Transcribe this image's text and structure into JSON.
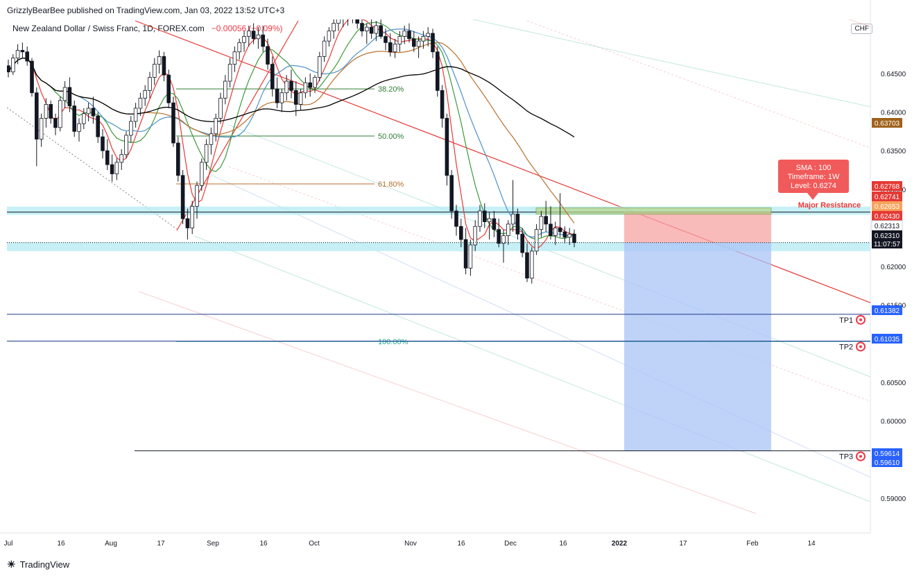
{
  "header": {
    "published_by": "GrizzlyBearBee published on TradingView.com, Jan 03, 2022 13:52 UTC+3"
  },
  "symbol": {
    "title": "New Zealand Dollar / Swiss Franc, 1D, FOREX.com",
    "change": "−0.00056 (−0.09%)"
  },
  "currency": "CHF",
  "footer": {
    "brand": "TradingView"
  },
  "colors": {
    "up": "#ffffff",
    "down": "#131722",
    "sma_red": "#e53935",
    "sma_orange": "#b8702b",
    "sma_green": "#3a9a3a",
    "sma_blue": "#4a90c8",
    "sma_black": "#000000",
    "zone": "#b8ecf4",
    "long_short_red": "#f7a3a3",
    "long_short_blue": "#a9c4f7"
  },
  "chart_data": {
    "type": "candlestick",
    "instrument": "NZDCHF",
    "timeframe": "1D",
    "x_ticks": [
      "Jul",
      "16",
      "Aug",
      "17",
      "Sep",
      "16",
      "Oct",
      "Nov",
      "16",
      "Dec",
      "16",
      "2022",
      "17",
      "Feb",
      "14"
    ],
    "y_ticks": [
      "0.64500",
      "0.64000",
      "0.63500",
      "0.63000",
      "0.62000",
      "0.61500",
      "0.60500",
      "0.60000",
      "0.59000"
    ],
    "ylim": [
      0.5855,
      0.652
    ],
    "price_labels": [
      {
        "value": "0.63703",
        "color": "#a0621c"
      },
      {
        "value": "0.62768",
        "color": "#e53935"
      },
      {
        "value": "0.62741",
        "color": "#e53935"
      },
      {
        "value": "0.62653",
        "color": "#f7a35c"
      },
      {
        "value": "0.62430",
        "color": "#e53935"
      },
      {
        "value": "0.62313",
        "color": "#ffffff"
      },
      {
        "value": "0.62310",
        "color": "#131722"
      },
      {
        "value": "11:07:57",
        "color": "#131722"
      },
      {
        "value": "0.61382",
        "color": "#2962ff"
      },
      {
        "value": "0.61035",
        "color": "#2962ff"
      },
      {
        "value": "0.59614",
        "color": "#2962ff"
      },
      {
        "value": "0.59610",
        "color": "#2962ff"
      }
    ],
    "fib_levels": [
      {
        "label": "38.20%",
        "value": 0.643
      },
      {
        "label": "50.00%",
        "value": 0.6369
      },
      {
        "label": "61.80%",
        "value": 0.6307
      },
      {
        "label": "100.00%",
        "value": 0.6103
      }
    ],
    "targets": [
      {
        "label": "TP1",
        "value": 0.61382
      },
      {
        "label": "TP2",
        "value": 0.61035
      },
      {
        "label": "TP3",
        "value": 0.59614
      }
    ],
    "annotation": {
      "lines": [
        "SMA : 100",
        "Timeframe: 1W",
        "Level: 0.6274"
      ],
      "label": "Major Resistance"
    },
    "resistance_zone": [
      0.62741,
      0.62768
    ],
    "support_zone": [
      0.622,
      0.62313
    ],
    "position": {
      "type": "short",
      "entry": 0.6231,
      "stop": 0.62741,
      "target": 0.59614
    },
    "candles": [
      [
        0.646,
        0.6468,
        0.6445,
        0.6452
      ],
      [
        0.6452,
        0.6475,
        0.6448,
        0.647
      ],
      [
        0.647,
        0.6488,
        0.6462,
        0.648
      ],
      [
        0.648,
        0.649,
        0.647,
        0.6478
      ],
      [
        0.6478,
        0.6485,
        0.646,
        0.6466
      ],
      [
        0.6466,
        0.647,
        0.642,
        0.6425
      ],
      [
        0.6425,
        0.6432,
        0.633,
        0.6365
      ],
      [
        0.6365,
        0.6398,
        0.6355,
        0.6392
      ],
      [
        0.6392,
        0.6418,
        0.638,
        0.641
      ],
      [
        0.641,
        0.6415,
        0.6385,
        0.6392
      ],
      [
        0.6392,
        0.6398,
        0.637,
        0.638
      ],
      [
        0.638,
        0.642,
        0.6375,
        0.6415
      ],
      [
        0.6415,
        0.644,
        0.6405,
        0.6432
      ],
      [
        0.6432,
        0.6445,
        0.64,
        0.6408
      ],
      [
        0.6408,
        0.6415,
        0.6368,
        0.6375
      ],
      [
        0.6375,
        0.6392,
        0.6362,
        0.6385
      ],
      [
        0.6385,
        0.6405,
        0.6378,
        0.6398
      ],
      [
        0.6398,
        0.6412,
        0.6388,
        0.6405
      ],
      [
        0.6405,
        0.642,
        0.6385,
        0.6395
      ],
      [
        0.6395,
        0.64,
        0.636,
        0.6368
      ],
      [
        0.6368,
        0.6378,
        0.634,
        0.635
      ],
      [
        0.635,
        0.6365,
        0.6325,
        0.6332
      ],
      [
        0.6332,
        0.6345,
        0.631,
        0.632
      ],
      [
        0.632,
        0.634,
        0.6312,
        0.6335
      ],
      [
        0.6335,
        0.6352,
        0.6325,
        0.6345
      ],
      [
        0.6345,
        0.6375,
        0.634,
        0.637
      ],
      [
        0.637,
        0.6395,
        0.636,
        0.6388
      ],
      [
        0.6388,
        0.6412,
        0.638,
        0.6405
      ],
      [
        0.6405,
        0.6425,
        0.6395,
        0.6418
      ],
      [
        0.6418,
        0.6435,
        0.6408,
        0.6428
      ],
      [
        0.6428,
        0.6452,
        0.6418,
        0.6445
      ],
      [
        0.6445,
        0.647,
        0.6435,
        0.6462
      ],
      [
        0.6462,
        0.648,
        0.645,
        0.6472
      ],
      [
        0.6472,
        0.6478,
        0.644,
        0.6448
      ],
      [
        0.6448,
        0.6455,
        0.6405,
        0.6412
      ],
      [
        0.6412,
        0.642,
        0.6355,
        0.636
      ],
      [
        0.636,
        0.6368,
        0.631,
        0.6318
      ],
      [
        0.6318,
        0.6325,
        0.6255,
        0.6262
      ],
      [
        0.6262,
        0.6275,
        0.6235,
        0.625
      ],
      [
        0.625,
        0.6285,
        0.6242,
        0.6278
      ],
      [
        0.6278,
        0.631,
        0.6262,
        0.6305
      ],
      [
        0.6305,
        0.634,
        0.6298,
        0.6335
      ],
      [
        0.6335,
        0.6365,
        0.6325,
        0.6358
      ],
      [
        0.6358,
        0.638,
        0.6345,
        0.6372
      ],
      [
        0.6372,
        0.6398,
        0.6362,
        0.6392
      ],
      [
        0.6392,
        0.6425,
        0.6385,
        0.6418
      ],
      [
        0.6418,
        0.6448,
        0.641,
        0.644
      ],
      [
        0.644,
        0.647,
        0.6432,
        0.6462
      ],
      [
        0.6462,
        0.6485,
        0.6452,
        0.6478
      ],
      [
        0.6478,
        0.6495,
        0.6468,
        0.649
      ],
      [
        0.649,
        0.6505,
        0.6478,
        0.6498
      ],
      [
        0.6498,
        0.6512,
        0.6485,
        0.6505
      ],
      [
        0.6505,
        0.6515,
        0.6488,
        0.6495
      ],
      [
        0.6495,
        0.651,
        0.6482,
        0.65
      ],
      [
        0.65,
        0.6512,
        0.6478,
        0.6485
      ],
      [
        0.6485,
        0.6495,
        0.6455,
        0.6462
      ],
      [
        0.6462,
        0.6472,
        0.642,
        0.643
      ],
      [
        0.643,
        0.6445,
        0.6405,
        0.6412
      ],
      [
        0.6412,
        0.643,
        0.64,
        0.6425
      ],
      [
        0.6425,
        0.6448,
        0.6415,
        0.644
      ],
      [
        0.644,
        0.6455,
        0.6418,
        0.6428
      ],
      [
        0.6428,
        0.644,
        0.6395,
        0.641
      ],
      [
        0.641,
        0.643,
        0.6402,
        0.6425
      ],
      [
        0.6425,
        0.6445,
        0.6418,
        0.6438
      ],
      [
        0.6438,
        0.645,
        0.642,
        0.6432
      ],
      [
        0.6432,
        0.6448,
        0.6425,
        0.6445
      ],
      [
        0.6445,
        0.6478,
        0.644,
        0.6472
      ],
      [
        0.6472,
        0.6498,
        0.6465,
        0.6492
      ],
      [
        0.6492,
        0.651,
        0.6485,
        0.6505
      ],
      [
        0.6505,
        0.652,
        0.6495,
        0.6515
      ],
      [
        0.6515,
        0.653,
        0.6505,
        0.6522
      ],
      [
        0.6522,
        0.6535,
        0.651,
        0.6525
      ],
      [
        0.6525,
        0.6538,
        0.6512,
        0.653
      ],
      [
        0.653,
        0.654,
        0.6515,
        0.6528
      ],
      [
        0.6528,
        0.6535,
        0.6508,
        0.6515
      ],
      [
        0.6515,
        0.6525,
        0.6498,
        0.6505
      ],
      [
        0.6505,
        0.6515,
        0.6488,
        0.651
      ],
      [
        0.651,
        0.652,
        0.6495,
        0.6502
      ],
      [
        0.6502,
        0.6518,
        0.6492,
        0.6512
      ],
      [
        0.6512,
        0.6522,
        0.6495,
        0.6498
      ],
      [
        0.6498,
        0.6508,
        0.648,
        0.649
      ],
      [
        0.649,
        0.6502,
        0.6472,
        0.6478
      ],
      [
        0.6478,
        0.6495,
        0.647,
        0.6488
      ],
      [
        0.6488,
        0.6505,
        0.6478,
        0.6498
      ],
      [
        0.6498,
        0.6512,
        0.6488,
        0.6505
      ],
      [
        0.6505,
        0.6515,
        0.649,
        0.6495
      ],
      [
        0.6495,
        0.6505,
        0.6478,
        0.6485
      ],
      [
        0.6485,
        0.6498,
        0.647,
        0.6492
      ],
      [
        0.6492,
        0.6505,
        0.6482,
        0.6498
      ],
      [
        0.6498,
        0.651,
        0.6485,
        0.6502
      ],
      [
        0.6502,
        0.6508,
        0.647,
        0.6478
      ],
      [
        0.6478,
        0.6485,
        0.642,
        0.6428
      ],
      [
        0.6428,
        0.6435,
        0.638,
        0.6392
      ],
      [
        0.6392,
        0.6398,
        0.6305,
        0.6318
      ],
      [
        0.6318,
        0.6325,
        0.6262,
        0.6272
      ],
      [
        0.6272,
        0.628,
        0.624,
        0.6252
      ],
      [
        0.6252,
        0.6262,
        0.6225,
        0.6235
      ],
      [
        0.6235,
        0.625,
        0.619,
        0.6198
      ],
      [
        0.6198,
        0.6235,
        0.6188,
        0.6228
      ],
      [
        0.6228,
        0.626,
        0.622,
        0.6252
      ],
      [
        0.6252,
        0.628,
        0.6245,
        0.6272
      ],
      [
        0.6272,
        0.6282,
        0.625,
        0.6258
      ],
      [
        0.6258,
        0.627,
        0.6235,
        0.6262
      ],
      [
        0.6262,
        0.6272,
        0.6238,
        0.6248
      ],
      [
        0.6248,
        0.6262,
        0.6225,
        0.623
      ],
      [
        0.623,
        0.6248,
        0.6205,
        0.624
      ],
      [
        0.624,
        0.626,
        0.6228,
        0.6255
      ],
      [
        0.6255,
        0.6312,
        0.6245,
        0.6268
      ],
      [
        0.6268,
        0.6275,
        0.6235,
        0.6242
      ],
      [
        0.6242,
        0.625,
        0.6212,
        0.6218
      ],
      [
        0.6218,
        0.623,
        0.618,
        0.6185
      ],
      [
        0.6185,
        0.6225,
        0.6178,
        0.622
      ],
      [
        0.622,
        0.6255,
        0.6215,
        0.6248
      ],
      [
        0.6248,
        0.6272,
        0.6238,
        0.6265
      ],
      [
        0.6265,
        0.6285,
        0.6245,
        0.6255
      ],
      [
        0.6255,
        0.6278,
        0.6235,
        0.624
      ],
      [
        0.624,
        0.6258,
        0.6228,
        0.625
      ],
      [
        0.625,
        0.6295,
        0.6238,
        0.6245
      ],
      [
        0.6245,
        0.6252,
        0.623,
        0.6238
      ],
      [
        0.6238,
        0.625,
        0.6228,
        0.6242
      ],
      [
        0.6242,
        0.6248,
        0.6225,
        0.6231
      ]
    ]
  }
}
